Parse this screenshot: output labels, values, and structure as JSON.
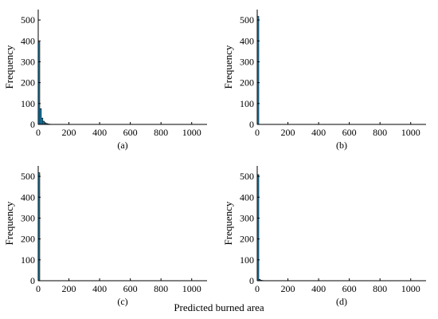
{
  "figure": {
    "shared_xlabel": "Predicted burned area",
    "bar_color": "#1f9ed8",
    "bar_edge_color": "#000000"
  },
  "chart_data": [
    {
      "type": "bar",
      "panel_label": "(a)",
      "ylabel": "Frequency",
      "xlim": [
        0,
        1100
      ],
      "ylim": [
        0,
        550
      ],
      "xticks": [
        0,
        200,
        400,
        600,
        800,
        1000
      ],
      "yticks": [
        0,
        100,
        200,
        300,
        400,
        500
      ],
      "bins": [
        [
          0,
          10
        ],
        [
          10,
          20
        ],
        [
          20,
          30
        ],
        [
          30,
          40
        ],
        [
          40,
          50
        ],
        [
          50,
          60
        ],
        [
          60,
          70
        ],
        [
          70,
          80
        ]
      ],
      "values": [
        395,
        75,
        30,
        15,
        8,
        4,
        2,
        1
      ]
    },
    {
      "type": "bar",
      "panel_label": "(b)",
      "ylabel": "Frequency",
      "xlim": [
        0,
        1100
      ],
      "ylim": [
        0,
        550
      ],
      "xticks": [
        0,
        200,
        400,
        600,
        800,
        1000
      ],
      "yticks": [
        0,
        100,
        200,
        300,
        400,
        500
      ],
      "bins": [
        [
          0,
          10
        ]
      ],
      "values": [
        517
      ]
    },
    {
      "type": "bar",
      "panel_label": "(c)",
      "ylabel": "Frequency",
      "xlim": [
        0,
        1100
      ],
      "ylim": [
        0,
        550
      ],
      "xticks": [
        0,
        200,
        400,
        600,
        800,
        1000
      ],
      "yticks": [
        0,
        100,
        200,
        300,
        400,
        500
      ],
      "bins": [
        [
          0,
          10
        ]
      ],
      "values": [
        517
      ]
    },
    {
      "type": "bar",
      "panel_label": "(d)",
      "ylabel": "Frequency",
      "xlim": [
        0,
        1100
      ],
      "ylim": [
        0,
        550
      ],
      "xticks": [
        0,
        200,
        400,
        600,
        800,
        1000
      ],
      "yticks": [
        0,
        100,
        200,
        300,
        400,
        500
      ],
      "bins": [
        [
          0,
          10
        ],
        [
          10,
          20
        ],
        [
          20,
          30
        ],
        [
          30,
          40
        ]
      ],
      "values": [
        508,
        6,
        2,
        1
      ]
    }
  ]
}
